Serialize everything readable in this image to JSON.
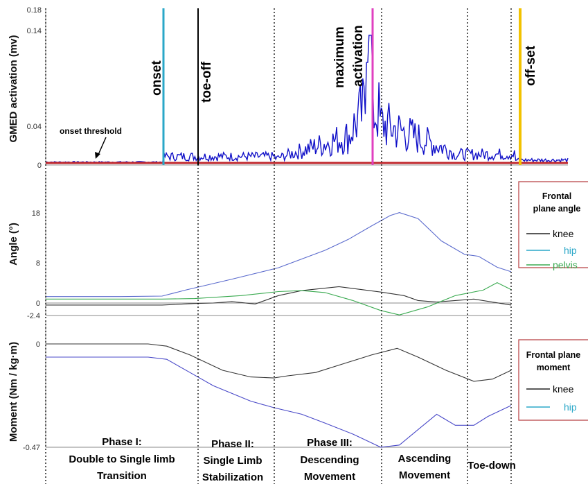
{
  "chart_data": [
    {
      "type": "line",
      "panel": "emg",
      "ylabel": "GMED activation (mv)",
      "yticks": [
        "0",
        "0.04",
        "0.14",
        "0.18"
      ],
      "ylim": [
        0,
        0.18
      ],
      "annotation": "onset threshold",
      "events": [
        {
          "label": "onset",
          "x": 0.245,
          "color": "#2aa7c8"
        },
        {
          "label": "toe-off",
          "x": 0.31,
          "color": "#000000"
        },
        {
          "label": "maximum\nactivation",
          "x": 0.62,
          "color": "#e040c0"
        },
        {
          "label": "off-set",
          "x": 0.955,
          "color": "#f2c200"
        }
      ],
      "threshold": 0.003,
      "series_color": "#1010c8",
      "threshold_color": "#c0282d"
    },
    {
      "type": "line",
      "panel": "angle",
      "ylabel": "Angle (°)",
      "yticks": [
        "-2.4",
        "0",
        "8",
        "18"
      ],
      "ylim": [
        -2.4,
        20.5
      ],
      "legend_title": "Frontal plane angle",
      "series": [
        {
          "name": "knee",
          "color": "#333333",
          "x": [
            0,
            0.25,
            0.32,
            0.36,
            0.4,
            0.45,
            0.5,
            0.55,
            0.63,
            0.72,
            0.77,
            0.8,
            0.84,
            0.88,
            0.92,
            1.0
          ],
          "y": [
            -0.4,
            -0.4,
            -0.1,
            0.0,
            0.3,
            -0.2,
            1.5,
            2.5,
            3.3,
            2.2,
            1.5,
            0.5,
            0.2,
            0.5,
            0.8,
            -0.4
          ]
        },
        {
          "name": "hip",
          "color": "#5a6acd",
          "x": [
            0,
            0.16,
            0.25,
            0.3,
            0.4,
            0.5,
            0.6,
            0.65,
            0.7,
            0.74,
            0.76,
            0.8,
            0.85,
            0.9,
            0.93,
            0.97,
            1.0
          ],
          "y": [
            1.3,
            1.3,
            1.4,
            2.6,
            4.8,
            7.1,
            10.6,
            12.8,
            15.5,
            17.6,
            18.2,
            17.0,
            12.5,
            9.8,
            9.4,
            7.2,
            6.3
          ]
        },
        {
          "name": "pelvis",
          "color": "#3aaa50",
          "x": [
            0,
            0.25,
            0.32,
            0.42,
            0.5,
            0.55,
            0.6,
            0.66,
            0.72,
            0.76,
            0.82,
            0.88,
            0.94,
            0.97,
            1.0
          ],
          "y": [
            0.8,
            0.8,
            0.9,
            1.5,
            2.3,
            2.5,
            2.1,
            0.5,
            -1.5,
            -2.4,
            -0.8,
            1.5,
            2.6,
            4.1,
            2.7
          ]
        }
      ]
    },
    {
      "type": "line",
      "panel": "moment",
      "ylabel": "Moment (Nm / kg·m)",
      "yticks": [
        "0",
        "-0.47"
      ],
      "ylim": [
        -0.47,
        0.02
      ],
      "legend_title": "Frontal plane moment",
      "series": [
        {
          "name": "knee",
          "color": "#333333",
          "x": [
            0,
            0.22,
            0.26,
            0.31,
            0.38,
            0.44,
            0.49,
            0.52,
            0.58,
            0.64,
            0.7,
            0.755,
            0.8,
            0.86,
            0.92,
            0.96,
            1.0
          ],
          "y": [
            0.0,
            0.0,
            -0.01,
            -0.05,
            -0.12,
            -0.15,
            -0.155,
            -0.145,
            -0.13,
            -0.09,
            -0.05,
            -0.02,
            -0.06,
            -0.12,
            -0.17,
            -0.16,
            -0.12
          ]
        },
        {
          "name": "hip",
          "color": "#4848c8",
          "x": [
            0,
            0.22,
            0.26,
            0.31,
            0.36,
            0.44,
            0.49,
            0.55,
            0.6,
            0.66,
            0.72,
            0.76,
            0.8,
            0.84,
            0.88,
            0.92,
            0.95,
            1.0
          ],
          "y": [
            -0.06,
            -0.06,
            -0.07,
            -0.13,
            -0.19,
            -0.26,
            -0.29,
            -0.32,
            -0.36,
            -0.41,
            -0.47,
            -0.46,
            -0.39,
            -0.32,
            -0.37,
            -0.37,
            -0.33,
            -0.28
          ]
        }
      ]
    }
  ],
  "phases": [
    {
      "line1": "Phase I:",
      "line2": "Double to Single limb",
      "line3": "Transition"
    },
    {
      "line1": "Phase II:",
      "line2": "Single Limb",
      "line3": "Stabilization"
    },
    {
      "line1": "Phase III:",
      "line2": "Descending",
      "line3": "Movement"
    },
    {
      "line1": "",
      "line2": "Ascending",
      "line3": "Movement"
    },
    {
      "line1": "",
      "line2": "Toe-down",
      "line3": ""
    }
  ]
}
